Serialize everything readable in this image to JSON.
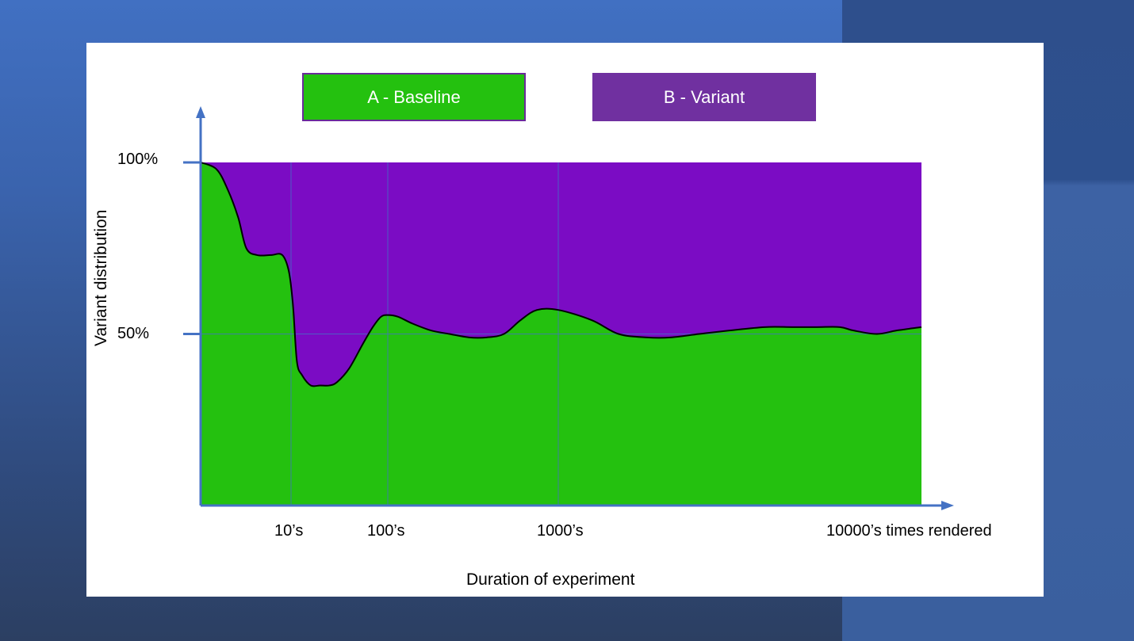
{
  "chart_data": {
    "type": "area",
    "legend": [
      "A - Baseline",
      "B - Variant"
    ],
    "legend_placement": "top",
    "colors": {
      "baseline": "#24c10f",
      "variant": "#7b0cc4",
      "axis": "#4472c4"
    },
    "xlabel": "Duration of experiment",
    "ylabel": "Variant distribution",
    "x_scale": "log",
    "x_ticks": [
      "10’s",
      "100’s",
      "1000’s",
      "10000’s times rendered"
    ],
    "y_ticks": [
      "100%",
      "50%"
    ],
    "ylim": [
      0,
      100
    ],
    "series": [
      {
        "name": "A - Baseline",
        "x": [
          1,
          1.5,
          2,
          2.6,
          3.2,
          4.2,
          6,
          8,
          9.5,
          10.5,
          11.5,
          13,
          16,
          20,
          25,
          30,
          40,
          55,
          70,
          85,
          100,
          115,
          140,
          180,
          230,
          300,
          380,
          480,
          600,
          750,
          1000,
          1300,
          1600,
          2000,
          2400,
          3000,
          3800,
          5000,
          6200,
          7500,
          9000,
          10000,
          12000,
          14000,
          17000
        ],
        "values": [
          100,
          98,
          92,
          84,
          75,
          73,
          73,
          73,
          68,
          58,
          42,
          38,
          35,
          35,
          35,
          36,
          40,
          47,
          52,
          55,
          55.5,
          55,
          53,
          51,
          50,
          49,
          49,
          50,
          54,
          57,
          57,
          54,
          50,
          49,
          49,
          50,
          51,
          52,
          52,
          52,
          52,
          51,
          50,
          51,
          52
        ]
      },
      {
        "name": "B - Variant",
        "note": "complement of A - Baseline (fills to 100%)"
      }
    ]
  }
}
